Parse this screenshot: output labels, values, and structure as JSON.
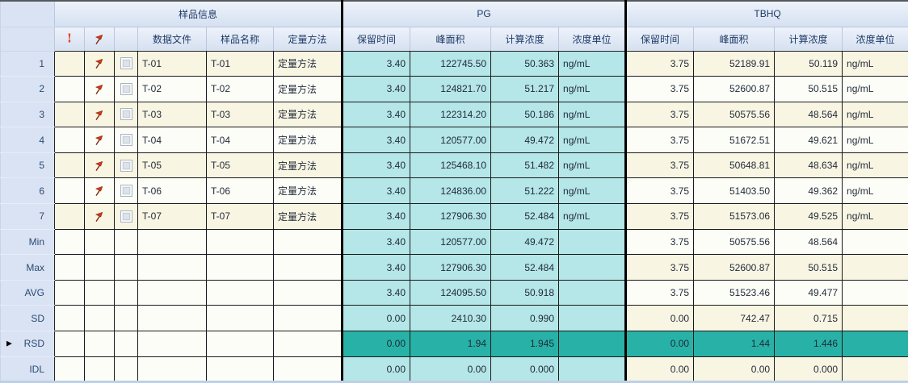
{
  "table": {
    "group_headers": {
      "sample": "样品信息",
      "pg": "PG",
      "tbhq": "TBHQ"
    },
    "column_headers": {
      "data_file": "数据文件",
      "sample_name": "样品名称",
      "method": "定量方法",
      "retention_time": "保留时间",
      "peak_area": "峰面积",
      "calc_conc": "计算浓度",
      "conc_unit": "浓度单位"
    },
    "icons": {
      "error_column": "exclamation-icon",
      "flag_column": "flag-icon",
      "current_row_marker": "right-triangle-marker"
    },
    "colors": {
      "pg_section_fill": "#b5e6e8",
      "highlight_row_fill": "#28b2a7",
      "stripe_cream": "#f9f5e3",
      "header_blue": "#dce6f4",
      "row_label_blue": "#d9e3f3",
      "flag_red": "#cf3a14"
    },
    "current_row_label": "RSD",
    "rows": [
      {
        "label": "1",
        "is_stat": false,
        "current": false,
        "flag": true,
        "checkbox": true,
        "data_file": "T-01",
        "sample_name": "T-01",
        "method": "定量方法",
        "pg": {
          "rt": "3.40",
          "area": "122745.50",
          "conc": "50.363",
          "unit": "ng/mL"
        },
        "tbhq": {
          "rt": "3.75",
          "area": "52189.91",
          "conc": "50.119",
          "unit": "ng/mL"
        }
      },
      {
        "label": "2",
        "is_stat": false,
        "current": false,
        "flag": true,
        "checkbox": true,
        "data_file": "T-02",
        "sample_name": "T-02",
        "method": "定量方法",
        "pg": {
          "rt": "3.40",
          "area": "124821.70",
          "conc": "51.217",
          "unit": "ng/mL"
        },
        "tbhq": {
          "rt": "3.75",
          "area": "52600.87",
          "conc": "50.515",
          "unit": "ng/mL"
        }
      },
      {
        "label": "3",
        "is_stat": false,
        "current": false,
        "flag": true,
        "checkbox": true,
        "data_file": "T-03",
        "sample_name": "T-03",
        "method": "定量方法",
        "pg": {
          "rt": "3.40",
          "area": "122314.20",
          "conc": "50.186",
          "unit": "ng/mL"
        },
        "tbhq": {
          "rt": "3.75",
          "area": "50575.56",
          "conc": "48.564",
          "unit": "ng/mL"
        }
      },
      {
        "label": "4",
        "is_stat": false,
        "current": false,
        "flag": true,
        "checkbox": true,
        "data_file": "T-04",
        "sample_name": "T-04",
        "method": "定量方法",
        "pg": {
          "rt": "3.40",
          "area": "120577.00",
          "conc": "49.472",
          "unit": "ng/mL"
        },
        "tbhq": {
          "rt": "3.75",
          "area": "51672.51",
          "conc": "49.621",
          "unit": "ng/mL"
        }
      },
      {
        "label": "5",
        "is_stat": false,
        "current": false,
        "flag": true,
        "checkbox": true,
        "data_file": "T-05",
        "sample_name": "T-05",
        "method": "定量方法",
        "pg": {
          "rt": "3.40",
          "area": "125468.10",
          "conc": "51.482",
          "unit": "ng/mL"
        },
        "tbhq": {
          "rt": "3.75",
          "area": "50648.81",
          "conc": "48.634",
          "unit": "ng/mL"
        }
      },
      {
        "label": "6",
        "is_stat": false,
        "current": false,
        "flag": true,
        "checkbox": true,
        "data_file": "T-06",
        "sample_name": "T-06",
        "method": "定量方法",
        "pg": {
          "rt": "3.40",
          "area": "124836.00",
          "conc": "51.222",
          "unit": "ng/mL"
        },
        "tbhq": {
          "rt": "3.75",
          "area": "51403.50",
          "conc": "49.362",
          "unit": "ng/mL"
        }
      },
      {
        "label": "7",
        "is_stat": false,
        "current": false,
        "flag": true,
        "checkbox": true,
        "data_file": "T-07",
        "sample_name": "T-07",
        "method": "定量方法",
        "pg": {
          "rt": "3.40",
          "area": "127906.30",
          "conc": "52.484",
          "unit": "ng/mL"
        },
        "tbhq": {
          "rt": "3.75",
          "area": "51573.06",
          "conc": "49.525",
          "unit": "ng/mL"
        }
      },
      {
        "label": "Min",
        "is_stat": true,
        "current": false,
        "flag": false,
        "checkbox": false,
        "data_file": "",
        "sample_name": "",
        "method": "",
        "pg": {
          "rt": "3.40",
          "area": "120577.00",
          "conc": "49.472",
          "unit": ""
        },
        "tbhq": {
          "rt": "3.75",
          "area": "50575.56",
          "conc": "48.564",
          "unit": ""
        }
      },
      {
        "label": "Max",
        "is_stat": true,
        "current": false,
        "flag": false,
        "checkbox": false,
        "data_file": "",
        "sample_name": "",
        "method": "",
        "pg": {
          "rt": "3.40",
          "area": "127906.30",
          "conc": "52.484",
          "unit": ""
        },
        "tbhq": {
          "rt": "3.75",
          "area": "52600.87",
          "conc": "50.515",
          "unit": ""
        }
      },
      {
        "label": "AVG",
        "is_stat": true,
        "current": false,
        "flag": false,
        "checkbox": false,
        "data_file": "",
        "sample_name": "",
        "method": "",
        "pg": {
          "rt": "3.40",
          "area": "124095.50",
          "conc": "50.918",
          "unit": ""
        },
        "tbhq": {
          "rt": "3.75",
          "area": "51523.46",
          "conc": "49.477",
          "unit": ""
        }
      },
      {
        "label": "SD",
        "is_stat": true,
        "current": false,
        "flag": false,
        "checkbox": false,
        "data_file": "",
        "sample_name": "",
        "method": "",
        "pg": {
          "rt": "0.00",
          "area": "2410.30",
          "conc": "0.990",
          "unit": ""
        },
        "tbhq": {
          "rt": "0.00",
          "area": "742.47",
          "conc": "0.715",
          "unit": ""
        }
      },
      {
        "label": "RSD",
        "is_stat": true,
        "current": true,
        "flag": false,
        "checkbox": false,
        "data_file": "",
        "sample_name": "",
        "method": "",
        "pg": {
          "rt": "0.00",
          "area": "1.94",
          "conc": "1.945",
          "unit": ""
        },
        "tbhq": {
          "rt": "0.00",
          "area": "1.44",
          "conc": "1.446",
          "unit": ""
        }
      },
      {
        "label": "IDL",
        "is_stat": true,
        "current": false,
        "flag": false,
        "checkbox": false,
        "data_file": "",
        "sample_name": "",
        "method": "",
        "pg": {
          "rt": "0.00",
          "area": "0.00",
          "conc": "0.000",
          "unit": ""
        },
        "tbhq": {
          "rt": "0.00",
          "area": "0.00",
          "conc": "0.000",
          "unit": ""
        }
      }
    ]
  }
}
